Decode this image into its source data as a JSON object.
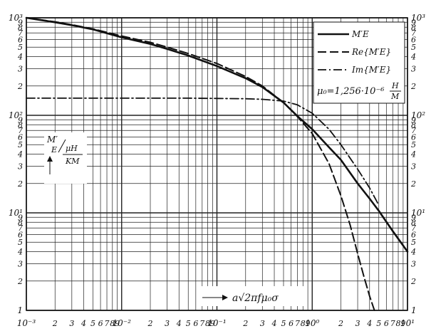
{
  "chart_data": {
    "type": "line",
    "x_scale": "log",
    "y_scale": "log",
    "xlim": [
      0.001,
      10
    ],
    "ylim": [
      1,
      1000
    ],
    "grid": true,
    "legend_position": "top-right",
    "x_tick_labels": [
      {
        "v": 0.001,
        "t": "10⁻³"
      },
      {
        "v": 0.002,
        "t": "2"
      },
      {
        "v": 0.003,
        "t": "3"
      },
      {
        "v": 0.004,
        "t": "4"
      },
      {
        "v": 0.005,
        "t": "5"
      },
      {
        "v": 0.006,
        "t": "6"
      },
      {
        "v": 0.007,
        "t": "7"
      },
      {
        "v": 0.008,
        "t": "8"
      },
      {
        "v": 0.009,
        "t": "9"
      },
      {
        "v": 0.01,
        "t": "10⁻²"
      },
      {
        "v": 0.02,
        "t": "2"
      },
      {
        "v": 0.03,
        "t": "3"
      },
      {
        "v": 0.04,
        "t": "4"
      },
      {
        "v": 0.05,
        "t": "5"
      },
      {
        "v": 0.06,
        "t": "6"
      },
      {
        "v": 0.07,
        "t": "7"
      },
      {
        "v": 0.08,
        "t": "8"
      },
      {
        "v": 0.09,
        "t": "9"
      },
      {
        "v": 0.1,
        "t": "10⁻¹"
      },
      {
        "v": 0.2,
        "t": "2"
      },
      {
        "v": 0.3,
        "t": "3"
      },
      {
        "v": 0.4,
        "t": "4"
      },
      {
        "v": 0.5,
        "t": "5"
      },
      {
        "v": 0.6,
        "t": "6"
      },
      {
        "v": 0.7,
        "t": "7"
      },
      {
        "v": 0.8,
        "t": "8"
      },
      {
        "v": 0.9,
        "t": "9"
      },
      {
        "v": 1,
        "t": "10⁰"
      },
      {
        "v": 2,
        "t": "2"
      },
      {
        "v": 3,
        "t": "3"
      },
      {
        "v": 4,
        "t": "4"
      },
      {
        "v": 5,
        "t": "5"
      },
      {
        "v": 6,
        "t": "6"
      },
      {
        "v": 7,
        "t": "7"
      },
      {
        "v": 8,
        "t": "8"
      },
      {
        "v": 9,
        "t": "9"
      },
      {
        "v": 10,
        "t": "10¹"
      }
    ],
    "y_tick_labels": [
      {
        "v": 1,
        "t": "1"
      },
      {
        "v": 2,
        "t": "2"
      },
      {
        "v": 3,
        "t": "3"
      },
      {
        "v": 4,
        "t": "4"
      },
      {
        "v": 5,
        "t": "5"
      },
      {
        "v": 6,
        "t": "6"
      },
      {
        "v": 7,
        "t": "7"
      },
      {
        "v": 8,
        "t": "8"
      },
      {
        "v": 9,
        "t": "9"
      },
      {
        "v": 10,
        "t": "10¹"
      },
      {
        "v": 20,
        "t": "2"
      },
      {
        "v": 30,
        "t": "3"
      },
      {
        "v": 40,
        "t": "4"
      },
      {
        "v": 50,
        "t": "5"
      },
      {
        "v": 60,
        "t": "6"
      },
      {
        "v": 70,
        "t": "7"
      },
      {
        "v": 80,
        "t": "8"
      },
      {
        "v": 90,
        "t": "9"
      },
      {
        "v": 100,
        "t": "10²"
      },
      {
        "v": 200,
        "t": "2"
      },
      {
        "v": 300,
        "t": "3"
      },
      {
        "v": 400,
        "t": "4"
      },
      {
        "v": 500,
        "t": "5"
      },
      {
        "v": 600,
        "t": "6"
      },
      {
        "v": 700,
        "t": "7"
      },
      {
        "v": 800,
        "t": "8"
      },
      {
        "v": 900,
        "t": "9"
      },
      {
        "v": 1000,
        "t": "10³"
      }
    ],
    "y_axis_label": {
      "line1": "M′",
      "line2": "E",
      "unit_num": "μH",
      "unit_den": "KM"
    },
    "x_axis_label": "a√2πfμ₀σ",
    "annotation": {
      "mu0": "μ₀=1,256·10⁻⁶",
      "unit_num": "H",
      "unit_den": "M"
    },
    "series": [
      {
        "name": "M′E",
        "style": "solid",
        "x": [
          0.001,
          0.002,
          0.003,
          0.005,
          0.01,
          0.02,
          0.03,
          0.05,
          0.1,
          0.2,
          0.3,
          0.5,
          0.7,
          1,
          1.5,
          2,
          3,
          4,
          5,
          7,
          10
        ],
        "y": [
          1000,
          900,
          840,
          760,
          630,
          540,
          480,
          410,
          320,
          240,
          195,
          135,
          98,
          72,
          47,
          35,
          20,
          14,
          10.5,
          6.5,
          4
        ]
      },
      {
        "name": "Re{M′E}",
        "style": "dashed",
        "x": [
          0.001,
          0.002,
          0.003,
          0.005,
          0.01,
          0.02,
          0.03,
          0.05,
          0.1,
          0.2,
          0.3,
          0.5,
          0.7,
          1,
          1.5,
          2,
          2.5,
          3,
          3.5,
          4,
          4.5
        ],
        "y": [
          1000,
          910,
          850,
          770,
          650,
          560,
          500,
          430,
          340,
          250,
          200,
          135,
          97,
          65,
          32,
          15,
          7.5,
          3.8,
          2.2,
          1.4,
          1
        ]
      },
      {
        "name": "Im{M′E}",
        "style": "dashdot",
        "x": [
          0.001,
          0.01,
          0.05,
          0.1,
          0.2,
          0.3,
          0.5,
          0.7,
          1,
          1.5,
          2,
          3,
          4,
          5
        ],
        "y": [
          150,
          150,
          150,
          149,
          148,
          146,
          140,
          128,
          105,
          72,
          50,
          28,
          18,
          12
        ]
      }
    ]
  }
}
